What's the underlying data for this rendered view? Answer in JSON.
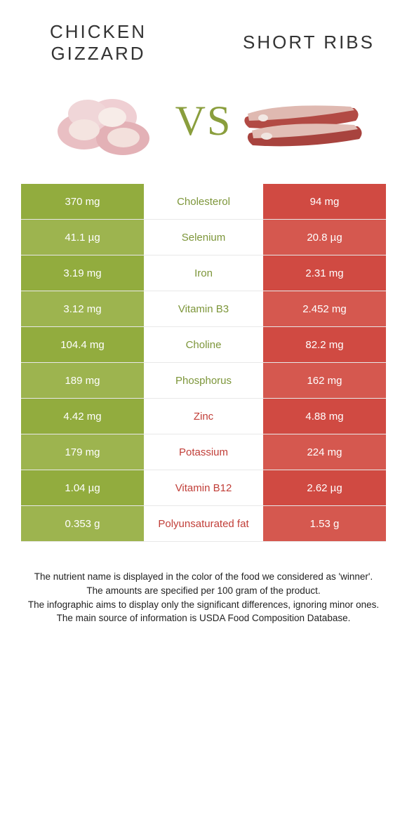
{
  "colors": {
    "left": "#92ac3e",
    "right": "#d04a42",
    "left_alt": "#9db44f",
    "right_alt": "#d5584f",
    "mid_left_text": "#7d963a",
    "mid_right_text": "#c13e38"
  },
  "header": {
    "left_title": "CHICKEN GIZZARD",
    "right_title": "SHORT RIBS",
    "vs": "VS"
  },
  "rows": [
    {
      "left": "370 mg",
      "label": "Cholesterol",
      "right": "94 mg",
      "winner": "left"
    },
    {
      "left": "41.1 µg",
      "label": "Selenium",
      "right": "20.8 µg",
      "winner": "left"
    },
    {
      "left": "3.19 mg",
      "label": "Iron",
      "right": "2.31 mg",
      "winner": "left"
    },
    {
      "left": "3.12 mg",
      "label": "Vitamin B3",
      "right": "2.452 mg",
      "winner": "left"
    },
    {
      "left": "104.4 mg",
      "label": "Choline",
      "right": "82.2 mg",
      "winner": "left"
    },
    {
      "left": "189 mg",
      "label": "Phosphorus",
      "right": "162 mg",
      "winner": "left"
    },
    {
      "left": "4.42 mg",
      "label": "Zinc",
      "right": "4.88 mg",
      "winner": "right"
    },
    {
      "left": "179 mg",
      "label": "Potassium",
      "right": "224 mg",
      "winner": "right"
    },
    {
      "left": "1.04 µg",
      "label": "Vitamin B12",
      "right": "2.62 µg",
      "winner": "right"
    },
    {
      "left": "0.353 g",
      "label": "Polyunsaturated fat",
      "right": "1.53 g",
      "winner": "right"
    }
  ],
  "footer": [
    "The nutrient name is displayed in the color of the food we considered as 'winner'.",
    "The amounts are specified per 100 gram of the product.",
    "The infographic aims to display only the significant differences, ignoring minor ones.",
    "The main source of information is USDA Food Composition Database."
  ]
}
